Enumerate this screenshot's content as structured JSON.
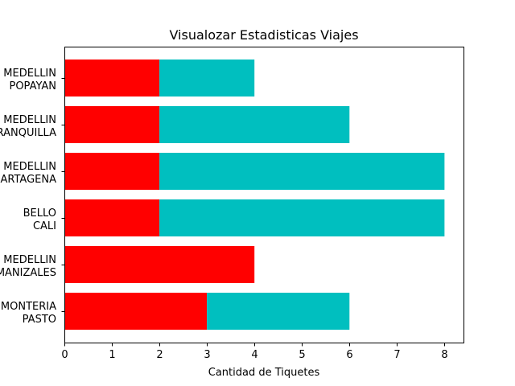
{
  "chart_data": {
    "type": "bar",
    "orientation": "horizontal",
    "stacked": true,
    "title": "Visualozar Estadisticas Viajes",
    "xlabel": "Cantidad de Tiquetes",
    "ylabel": "",
    "xlim": [
      0,
      8.4
    ],
    "xticks": [
      "0",
      "1",
      "2",
      "3",
      "4",
      "5",
      "6",
      "7",
      "8"
    ],
    "categories": [
      [
        "MEDELLIN",
        "POPAYAN"
      ],
      [
        "MEDELLIN",
        "BARRANQUILLA"
      ],
      [
        "MEDELLIN",
        "CARTAGENA"
      ],
      [
        "BELLO",
        "CALI"
      ],
      [
        "MEDELLIN",
        "MANIZALES"
      ],
      [
        "MONTERIA",
        "PASTO"
      ]
    ],
    "series": [
      {
        "values": [
          2,
          2,
          2,
          2,
          4,
          3
        ],
        "color": "#ff0000"
      },
      {
        "values": [
          2,
          4,
          6,
          6,
          0,
          3
        ],
        "color": "#00bfbf"
      }
    ],
    "grid": false,
    "legend": "none"
  }
}
